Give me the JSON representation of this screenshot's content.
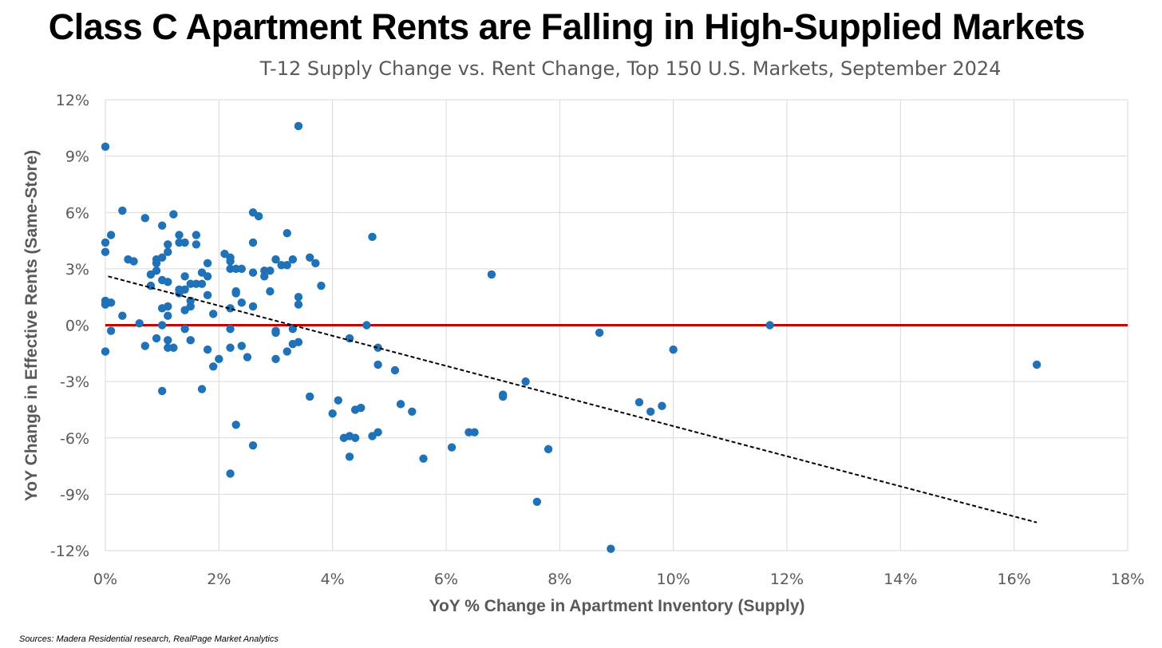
{
  "chart_data": {
    "type": "scatter",
    "title": "Class C Apartment Rents are Falling in High-Supplied Markets",
    "subtitle": "T-12 Supply Change vs. Rent Change, Top 150 U.S. Markets, September 2024",
    "xlabel": "YoY % Change in Apartment Inventory (Supply)",
    "ylabel": "YoY Change in Effective Rents (Same-Store)",
    "xlim": [
      0,
      18
    ],
    "ylim": [
      -12,
      12
    ],
    "xticks": [
      0,
      2,
      4,
      6,
      8,
      10,
      12,
      14,
      16,
      18
    ],
    "xtick_labels": [
      "0%",
      "2%",
      "4%",
      "6%",
      "8%",
      "10%",
      "12%",
      "14%",
      "16%",
      "18%"
    ],
    "yticks": [
      12,
      9,
      6,
      3,
      0,
      -3,
      -6,
      -9,
      -12
    ],
    "ytick_labels": [
      "12%",
      "9%",
      "6%",
      "3%",
      "0%",
      "-3%",
      "-6%",
      "-9%",
      "-12%"
    ],
    "grid": true,
    "point_color": "#1f71b8",
    "zero_line_color": "#c00000",
    "trendline": {
      "style": "dashed",
      "color": "#000000",
      "x": [
        0.05,
        16.4
      ],
      "y": [
        2.6,
        -10.5
      ]
    },
    "points": [
      [
        0.0,
        9.5
      ],
      [
        3.4,
        10.6
      ],
      [
        0.3,
        6.1
      ],
      [
        1.2,
        5.9
      ],
      [
        0.7,
        5.7
      ],
      [
        2.6,
        6.0
      ],
      [
        2.7,
        5.8
      ],
      [
        1.0,
        5.3
      ],
      [
        0.1,
        4.8
      ],
      [
        1.3,
        4.8
      ],
      [
        1.6,
        4.8
      ],
      [
        3.2,
        4.9
      ],
      [
        4.7,
        4.7
      ],
      [
        0.0,
        4.4
      ],
      [
        1.1,
        4.3
      ],
      [
        1.3,
        4.4
      ],
      [
        1.4,
        4.4
      ],
      [
        1.6,
        4.3
      ],
      [
        2.6,
        4.4
      ],
      [
        0.0,
        3.9
      ],
      [
        1.1,
        3.9
      ],
      [
        2.1,
        3.8
      ],
      [
        2.2,
        3.6
      ],
      [
        0.4,
        3.5
      ],
      [
        0.5,
        3.4
      ],
      [
        0.9,
        3.5
      ],
      [
        1.0,
        3.6
      ],
      [
        0.9,
        3.3
      ],
      [
        1.8,
        3.3
      ],
      [
        2.2,
        3.4
      ],
      [
        3.0,
        3.5
      ],
      [
        3.3,
        3.5
      ],
      [
        3.6,
        3.6
      ],
      [
        3.7,
        3.3
      ],
      [
        3.1,
        3.2
      ],
      [
        3.2,
        3.2
      ],
      [
        0.9,
        2.9
      ],
      [
        2.2,
        3.0
      ],
      [
        2.3,
        3.0
      ],
      [
        2.4,
        3.0
      ],
      [
        2.8,
        2.9
      ],
      [
        2.9,
        2.9
      ],
      [
        2.6,
        2.8
      ],
      [
        0.8,
        2.7
      ],
      [
        1.4,
        2.6
      ],
      [
        1.7,
        2.8
      ],
      [
        1.8,
        2.6
      ],
      [
        2.8,
        2.6
      ],
      [
        6.8,
        2.7
      ],
      [
        1.0,
        2.4
      ],
      [
        1.1,
        2.3
      ],
      [
        1.5,
        2.2
      ],
      [
        1.6,
        2.2
      ],
      [
        1.7,
        2.2
      ],
      [
        0.8,
        2.1
      ],
      [
        3.8,
        2.1
      ],
      [
        1.3,
        1.9
      ],
      [
        1.4,
        1.9
      ],
      [
        1.3,
        1.7
      ],
      [
        1.8,
        1.6
      ],
      [
        2.3,
        1.8
      ],
      [
        2.3,
        1.7
      ],
      [
        2.9,
        1.8
      ],
      [
        0.0,
        1.3
      ],
      [
        0.1,
        1.2
      ],
      [
        0.0,
        1.1
      ],
      [
        1.5,
        1.3
      ],
      [
        2.4,
        1.2
      ],
      [
        3.4,
        1.5
      ],
      [
        3.4,
        1.1
      ],
      [
        1.1,
        1.0
      ],
      [
        1.5,
        1.0
      ],
      [
        1.0,
        0.9
      ],
      [
        1.4,
        0.8
      ],
      [
        2.2,
        0.9
      ],
      [
        2.6,
        1.0
      ],
      [
        0.3,
        0.5
      ],
      [
        1.1,
        0.5
      ],
      [
        1.9,
        0.6
      ],
      [
        0.6,
        0.1
      ],
      [
        1.0,
        0.0
      ],
      [
        4.6,
        0.0
      ],
      [
        11.7,
        0.0
      ],
      [
        0.1,
        -0.3
      ],
      [
        1.4,
        -0.2
      ],
      [
        2.2,
        -0.2
      ],
      [
        3.0,
        -0.3
      ],
      [
        3.0,
        -0.4
      ],
      [
        3.3,
        -0.2
      ],
      [
        8.7,
        -0.4
      ],
      [
        0.9,
        -0.7
      ],
      [
        1.1,
        -0.8
      ],
      [
        1.5,
        -0.8
      ],
      [
        3.3,
        -1.0
      ],
      [
        3.4,
        -0.9
      ],
      [
        4.3,
        -0.7
      ],
      [
        0.7,
        -1.1
      ],
      [
        1.1,
        -1.2
      ],
      [
        1.2,
        -1.2
      ],
      [
        1.8,
        -1.3
      ],
      [
        2.2,
        -1.2
      ],
      [
        2.4,
        -1.1
      ],
      [
        3.2,
        -1.4
      ],
      [
        4.8,
        -1.2
      ],
      [
        10.0,
        -1.3
      ],
      [
        0.0,
        -1.4
      ],
      [
        2.0,
        -1.8
      ],
      [
        2.5,
        -1.7
      ],
      [
        3.0,
        -1.8
      ],
      [
        1.9,
        -2.2
      ],
      [
        4.8,
        -2.1
      ],
      [
        5.1,
        -2.4
      ],
      [
        16.4,
        -2.1
      ],
      [
        7.4,
        -3.0
      ],
      [
        1.0,
        -3.5
      ],
      [
        1.7,
        -3.4
      ],
      [
        3.6,
        -3.8
      ],
      [
        7.0,
        -3.7
      ],
      [
        7.0,
        -3.8
      ],
      [
        4.1,
        -4.0
      ],
      [
        5.2,
        -4.2
      ],
      [
        9.4,
        -4.1
      ],
      [
        9.8,
        -4.3
      ],
      [
        4.4,
        -4.5
      ],
      [
        4.5,
        -4.4
      ],
      [
        5.4,
        -4.6
      ],
      [
        9.6,
        -4.6
      ],
      [
        4.0,
        -4.7
      ],
      [
        2.3,
        -5.3
      ],
      [
        4.8,
        -5.7
      ],
      [
        6.4,
        -5.7
      ],
      [
        6.5,
        -5.7
      ],
      [
        4.2,
        -6.0
      ],
      [
        4.3,
        -5.9
      ],
      [
        4.4,
        -6.0
      ],
      [
        4.7,
        -5.9
      ],
      [
        2.6,
        -6.4
      ],
      [
        6.1,
        -6.5
      ],
      [
        7.8,
        -6.6
      ],
      [
        4.3,
        -7.0
      ],
      [
        5.6,
        -7.1
      ],
      [
        2.2,
        -7.9
      ],
      [
        7.6,
        -9.4
      ],
      [
        8.9,
        -11.9
      ]
    ]
  },
  "source": "Sources: Madera Residential research, RealPage Market Analytics"
}
